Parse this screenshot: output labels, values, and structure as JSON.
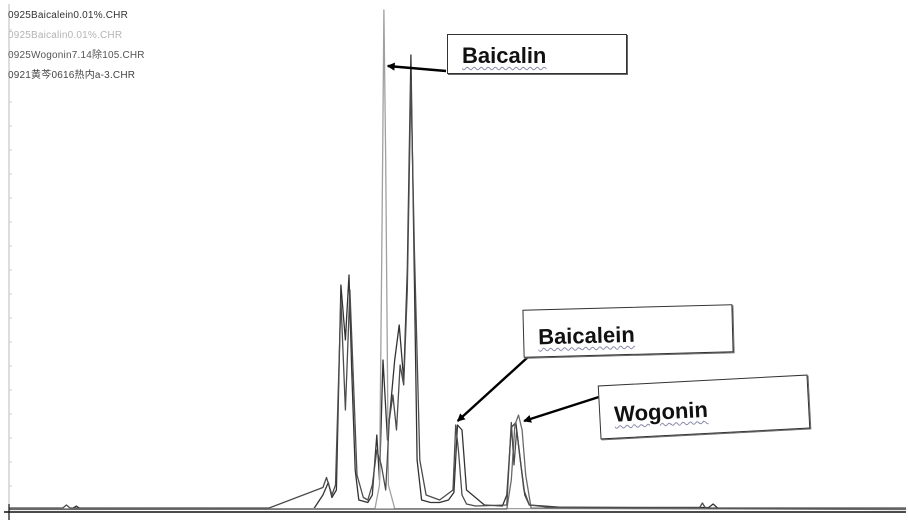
{
  "chart_data": {
    "type": "line",
    "title": "",
    "xlabel": "",
    "ylabel": "",
    "xlim": [
      0,
      100
    ],
    "ylim": [
      0,
      100
    ],
    "grid": false,
    "legend_position": "top-left",
    "series": [
      {
        "name": "0925Baicalein0.01%.CHR",
        "color": "#333333",
        "x": [
          0,
          7,
          7.5,
          8,
          30,
          34,
          35,
          35.6,
          36,
          36.5,
          37,
          37.5,
          37.9,
          38.2,
          38.6,
          39,
          40,
          40.5,
          41,
          41.3,
          41.7,
          42.2,
          43,
          43.5,
          44,
          44.4,
          44.8,
          45.2,
          45.5,
          46,
          47,
          48,
          49,
          49.6,
          50,
          50.5,
          51,
          53,
          55,
          55.5,
          56,
          56.5,
          57,
          57.5,
          58,
          62,
          78,
          78.5,
          79,
          86,
          100
        ],
        "y": [
          0.2,
          0.2,
          0.8,
          0.2,
          0.2,
          0.3,
          3,
          5.5,
          2.5,
          4,
          45,
          34,
          47,
          28,
          8,
          2,
          1.5,
          3,
          15,
          6,
          30,
          14,
          30,
          37,
          26,
          48,
          91,
          46,
          10,
          2,
          1.5,
          1.5,
          2,
          3.5,
          17,
          16,
          4,
          1,
          0.8,
          3,
          16.5,
          17.5,
          10,
          3,
          1,
          0.5,
          0.5,
          1.2,
          0.4,
          0.3,
          0.2
        ]
      },
      {
        "name": "0925Baicalin0.01%.CHR",
        "color": "#a0a0a0",
        "x": [
          0,
          40.8,
          41.3,
          41.6,
          41.8,
          42,
          42.3,
          43,
          100
        ],
        "y": [
          0.2,
          0.3,
          5,
          60,
          100,
          70,
          5,
          0.3,
          0.2
        ]
      },
      {
        "name": "0925Wogonin7.14除105.CHR",
        "color": "#6a6a6a",
        "x": [
          0,
          55.5,
          56,
          56.4,
          56.8,
          57.2,
          57.6,
          58.2,
          100
        ],
        "y": [
          0.1,
          0.2,
          6,
          17,
          19,
          16,
          7,
          0.4,
          0.1
        ]
      },
      {
        "name": "0921黄芩0616热内a-3.CHR",
        "color": "#4c4c4c",
        "x": [
          0,
          6,
          6.4,
          6.8,
          29,
          35,
          35.4,
          36,
          36.4,
          37,
          37.5,
          38,
          38.4,
          38.8,
          39.5,
          40,
          40.5,
          41,
          41.5,
          42,
          42.4,
          42.8,
          43.2,
          43.6,
          44,
          44.4,
          44.8,
          45.2,
          45.8,
          46.5,
          48,
          49.5,
          49.8,
          50.1,
          50.5,
          51,
          52,
          55.5,
          56,
          56.3,
          56.6,
          57,
          57.4,
          58,
          60,
          70,
          77,
          77.3,
          77.6,
          78,
          100
        ],
        "y": [
          0.4,
          0.4,
          1,
          0.4,
          0.4,
          4.5,
          6.5,
          3,
          5,
          42,
          20,
          44,
          26,
          7,
          2.5,
          2,
          5,
          12,
          9,
          4,
          18,
          23,
          16,
          29,
          25,
          44,
          86,
          52,
          10,
          3,
          2,
          4,
          17,
          12,
          3,
          1.2,
          0.8,
          1,
          17.5,
          9,
          16,
          10,
          4,
          1,
          0.6,
          0.5,
          0.5,
          1.4,
          0.5,
          0.4,
          0.4
        ]
      }
    ],
    "annotations": [
      {
        "text": "Baicalin",
        "target": [
          42,
          88
        ]
      },
      {
        "text": "Baicalein",
        "target": [
          49.8,
          17
        ]
      },
      {
        "text": "Wogonin",
        "target": [
          57.2,
          17
        ]
      }
    ]
  },
  "legend_colors": [
    "#333333",
    "#b4b4b4",
    "#555555",
    "#444444"
  ]
}
